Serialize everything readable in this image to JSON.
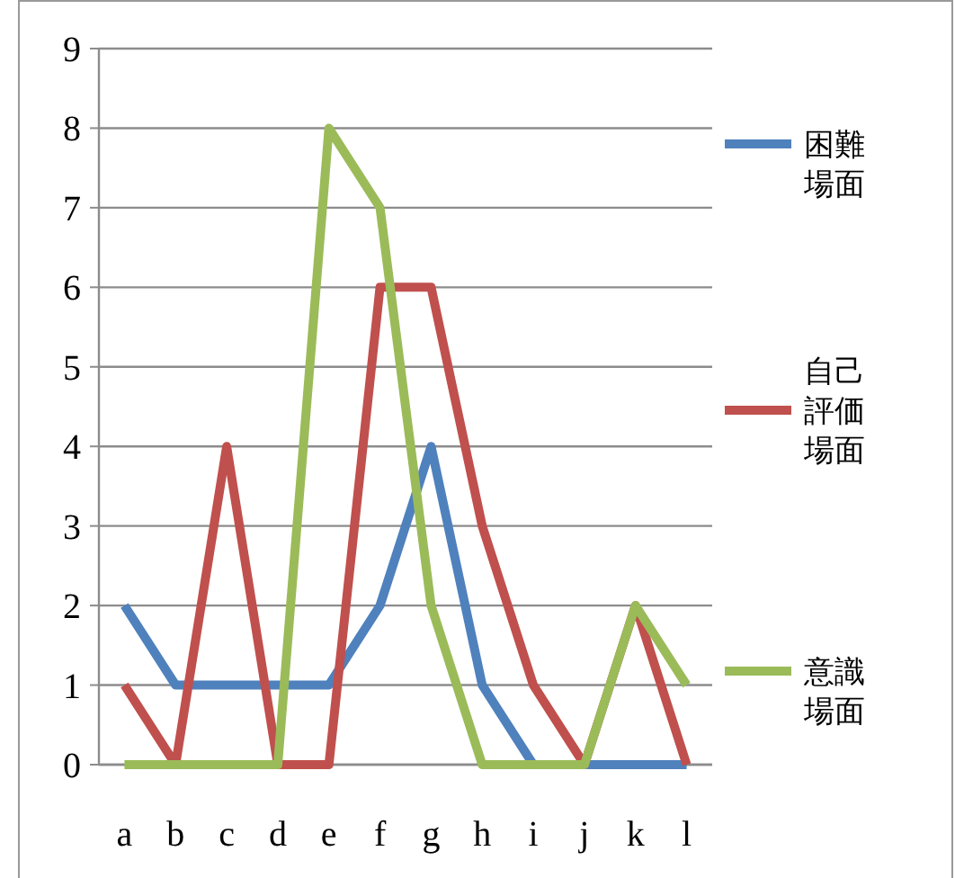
{
  "chart_data": {
    "type": "line",
    "categories": [
      "a",
      "b",
      "c",
      "d",
      "e",
      "f",
      "g",
      "h",
      "i",
      "j",
      "k",
      "l"
    ],
    "series": [
      {
        "name": "困難場面",
        "color": "#4f81bd",
        "values": [
          2,
          1,
          1,
          1,
          1,
          2,
          4,
          1,
          0,
          0,
          0,
          0
        ]
      },
      {
        "name": "自己評価場面",
        "color": "#c0504d",
        "values": [
          1,
          0,
          4,
          0,
          0,
          6,
          6,
          3,
          1,
          0,
          2,
          0
        ]
      },
      {
        "name": "意識場面",
        "color": "#9bbb59",
        "values": [
          0,
          0,
          0,
          0,
          8,
          7,
          2,
          0,
          0,
          0,
          2,
          1
        ]
      }
    ],
    "ylim": [
      0,
      9
    ],
    "yticks": [
      0,
      1,
      2,
      3,
      4,
      5,
      6,
      7,
      8,
      9
    ],
    "grid": "y",
    "legend": "right",
    "marker": "none",
    "line_style": "solid"
  }
}
